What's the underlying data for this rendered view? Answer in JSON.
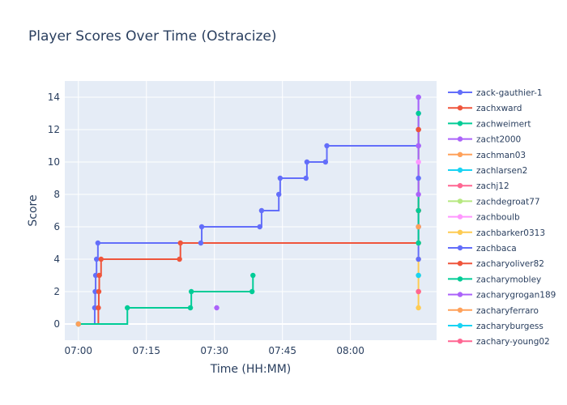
{
  "chart_data": {
    "type": "line",
    "title": "Player Scores Over Time (Ostracize)",
    "xlabel": "Time (HH:MM)",
    "ylabel": "Score",
    "x_ticks": [
      "07:00",
      "07:15",
      "07:30",
      "07:45",
      "08:00"
    ],
    "y_ticks": [
      0,
      2,
      4,
      6,
      8,
      10,
      12,
      14
    ],
    "xlim": [
      -3,
      79
    ],
    "ylim": [
      -1,
      15
    ],
    "grid": true,
    "legend_position": "right",
    "colors": {
      "plot_bg": "#E5ECF6",
      "grid": "#ffffff",
      "text": "#2a3f5f"
    },
    "series": [
      {
        "name": "zack-gauthier-1",
        "color": "#636EFA",
        "step": true,
        "points": [
          [
            0,
            0
          ],
          [
            3.6,
            1
          ],
          [
            3.7,
            2
          ],
          [
            3.8,
            3
          ],
          [
            4.0,
            4
          ],
          [
            4.3,
            5
          ],
          [
            27,
            5
          ],
          [
            27.2,
            6
          ],
          [
            40,
            6
          ],
          [
            40.4,
            7
          ],
          [
            44.2,
            8
          ],
          [
            44.5,
            9
          ],
          [
            50.2,
            9
          ],
          [
            50.4,
            10
          ],
          [
            54.5,
            10
          ],
          [
            54.8,
            11
          ],
          [
            75,
            11
          ],
          [
            75,
            12
          ],
          [
            75,
            13
          ],
          [
            75,
            14
          ]
        ]
      },
      {
        "name": "zachxward",
        "color": "#EF553B",
        "step": true,
        "points": [
          [
            0,
            0
          ],
          [
            4.4,
            1
          ],
          [
            4.5,
            2
          ],
          [
            4.6,
            3
          ],
          [
            5.0,
            4
          ],
          [
            22.3,
            4
          ],
          [
            22.5,
            5
          ],
          [
            75,
            5
          ],
          [
            75,
            6
          ],
          [
            75,
            7
          ],
          [
            75,
            12
          ]
        ]
      },
      {
        "name": "zachweimert",
        "color": "#00CC96",
        "step": true,
        "points": [
          [
            0,
            0
          ],
          [
            10.8,
            1
          ],
          [
            24.7,
            1
          ],
          [
            24.9,
            2
          ],
          [
            38.3,
            2
          ],
          [
            38.5,
            3
          ]
        ]
      },
      {
        "name": "zacht2000",
        "color": "#AB63FA",
        "step": false,
        "points": [
          [
            30.5,
            1
          ]
        ]
      },
      {
        "name": "zachman03",
        "color": "#FFA15A",
        "step": false,
        "points": [
          [
            0,
            0
          ]
        ]
      },
      {
        "name": "zachlarsen2",
        "color": "#19D3F3",
        "step": false,
        "points": [
          [
            75,
            3
          ]
        ]
      },
      {
        "name": "zachj12",
        "color": "#FF6692",
        "step": false,
        "points": [
          [
            75,
            2
          ]
        ]
      },
      {
        "name": "zachdegroat77",
        "color": "#B6E880",
        "step": false,
        "points": [
          [
            75,
            5
          ]
        ]
      },
      {
        "name": "zachboulb",
        "color": "#FF97FF",
        "step": false,
        "points": [
          [
            75,
            10
          ]
        ]
      },
      {
        "name": "zachbarker0313",
        "color": "#FECB52",
        "step": true,
        "points": [
          [
            75,
            1
          ],
          [
            75,
            2
          ],
          [
            75,
            3
          ],
          [
            75,
            4
          ]
        ]
      },
      {
        "name": "zachbaca",
        "color": "#636EFA",
        "step": true,
        "points": [
          [
            75,
            4
          ],
          [
            75,
            6
          ],
          [
            75,
            9
          ]
        ]
      },
      {
        "name": "zacharyoliver82",
        "color": "#EF553B",
        "step": true,
        "points": [
          [
            75,
            7
          ],
          [
            75,
            12
          ]
        ]
      },
      {
        "name": "zacharymobley",
        "color": "#00CC96",
        "step": true,
        "points": [
          [
            75,
            5
          ],
          [
            75,
            7
          ],
          [
            75,
            13
          ]
        ]
      },
      {
        "name": "zacharygrogan189",
        "color": "#AB63FA",
        "step": true,
        "points": [
          [
            75,
            8
          ],
          [
            75,
            11
          ],
          [
            75,
            14
          ]
        ]
      },
      {
        "name": "zacharyferraro",
        "color": "#FFA15A",
        "step": false,
        "points": [
          [
            75,
            6
          ]
        ]
      },
      {
        "name": "zacharyburgess",
        "color": "#19D3F3",
        "step": false,
        "points": [
          [
            75,
            3
          ]
        ]
      },
      {
        "name": "zachary-young02",
        "color": "#FF6692",
        "step": false,
        "points": [
          [
            75,
            2
          ]
        ]
      }
    ]
  }
}
